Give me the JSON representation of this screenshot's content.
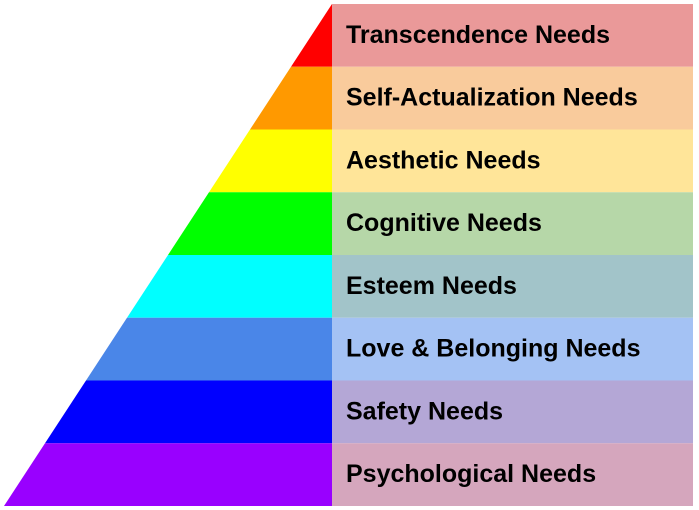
{
  "levels": [
    {
      "label": "Transcendence Needs",
      "pyramid_color": "#ff0000",
      "box_color": "#ea9999"
    },
    {
      "label": "Self-Actualization Needs",
      "pyramid_color": "#ff9900",
      "box_color": "#f9cb9c"
    },
    {
      "label": "Aesthetic Needs",
      "pyramid_color": "#ffff00",
      "box_color": "#ffe599"
    },
    {
      "label": "Cognitive Needs",
      "pyramid_color": "#00ff00",
      "box_color": "#b6d7a8"
    },
    {
      "label": "Esteem Needs",
      "pyramid_color": "#00ffff",
      "box_color": "#a2c4c9"
    },
    {
      "label": "Love & Belonging Needs",
      "pyramid_color": "#4a86e8",
      "box_color": "#a4c2f4"
    },
    {
      "label": "Safety Needs",
      "pyramid_color": "#0000ff",
      "box_color": "#b4a7d6"
    },
    {
      "label": "Psychological Needs",
      "pyramid_color": "#9900ff",
      "box_color": "#d5a6bd"
    }
  ]
}
